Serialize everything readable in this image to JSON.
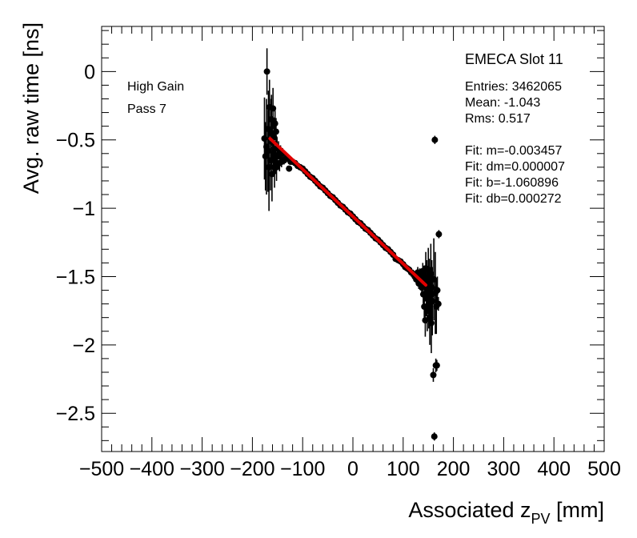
{
  "chart_data": {
    "type": "scatter",
    "title": "EMECA Slot 11",
    "xlabel": "Associated z",
    "xlabel_sub": "PV",
    "xlabel_unit": " [mm]",
    "ylabel": "Avg. raw time [ns]",
    "xlim": [
      -500,
      500
    ],
    "ylim": [
      -2.78,
      0.33
    ],
    "xticks": [
      -500,
      -400,
      -300,
      -200,
      -100,
      0,
      100,
      200,
      300,
      400,
      500
    ],
    "xtick_labels": [
      "−500",
      "−400",
      "−300",
      "−200",
      "−100",
      "0",
      "100",
      "200",
      "300",
      "400",
      "500"
    ],
    "yticks": [
      0,
      -0.5,
      -1,
      -1.5,
      -2,
      -2.5
    ],
    "ytick_labels": [
      "0",
      "−0.5",
      "−1",
      "−1.5",
      "−2",
      "−2.5"
    ],
    "annotations": {
      "gain": "High Gain",
      "pass": "Pass 7"
    },
    "stats": {
      "entries": "Entries: 3462065",
      "mean": "Mean: -1.043",
      "rms": "Rms: 0.517",
      "fit_m": "Fit: m=-0.003457",
      "fit_dm": "Fit: dm=0.000007",
      "fit_b": "Fit: b=-1.060896",
      "fit_db": "Fit: db=0.000272"
    },
    "fit": {
      "slope": -0.003457,
      "intercept": -1.060896,
      "x_range": [
        -165,
        145
      ],
      "color": "#e00000"
    },
    "series": [
      {
        "name": "data",
        "color": "#000000",
        "points": [
          [
            -176,
            -0.49,
            0.3
          ],
          [
            -174,
            -0.62,
            0.25
          ],
          [
            -172,
            -0.55,
            0.35
          ],
          [
            -171,
            0.0,
            0.17
          ],
          [
            -169,
            -0.58,
            0.3
          ],
          [
            -168,
            -0.42,
            0.28
          ],
          [
            -167,
            -0.7,
            0.32
          ],
          [
            -166,
            -0.26,
            0.2
          ],
          [
            -164,
            -0.65,
            0.22
          ],
          [
            -163,
            -0.45,
            0.25
          ],
          [
            -162,
            -0.35,
            0.18
          ],
          [
            -161,
            -0.75,
            0.2
          ],
          [
            -160,
            -0.52,
            0.15
          ],
          [
            -159,
            -0.27,
            0.15
          ],
          [
            -158,
            -0.6,
            0.16
          ],
          [
            -157,
            -0.48,
            0.14
          ],
          [
            -156,
            -0.7,
            0.15
          ],
          [
            -155,
            -0.38,
            0.12
          ],
          [
            -154,
            -0.63,
            0.12
          ],
          [
            -153,
            -0.44,
            0.1
          ],
          [
            -152,
            -0.7,
            0.1
          ],
          [
            -151,
            -0.56,
            0.08
          ],
          [
            -150,
            -0.62,
            0.08
          ],
          [
            -148,
            -0.57,
            0.06
          ],
          [
            -146,
            -0.67,
            0.06
          ],
          [
            -144,
            -0.59,
            0.05
          ],
          [
            -142,
            -0.66,
            0.04
          ],
          [
            -140,
            -0.6,
            0.04
          ],
          [
            -137,
            -0.65,
            0.03
          ],
          [
            -134,
            -0.64,
            0.03
          ],
          [
            -130,
            -0.63,
            0.02
          ],
          [
            -127,
            -0.71,
            0.02
          ],
          [
            -124,
            -0.66,
            0.02
          ],
          [
            -120,
            -0.66,
            0.01
          ],
          [
            -115,
            -0.67,
            0.01
          ],
          [
            -110,
            -0.69,
            0.01
          ],
          [
            -105,
            -0.7,
            0.01
          ],
          [
            -100,
            -0.71,
            0.01
          ],
          [
            -95,
            -0.73,
            0.01
          ],
          [
            -90,
            -0.75,
            0.01
          ],
          [
            -85,
            -0.77,
            0.01
          ],
          [
            -80,
            -0.78,
            0.01
          ],
          [
            -75,
            -0.8,
            0.01
          ],
          [
            -70,
            -0.82,
            0.01
          ],
          [
            -65,
            -0.84,
            0.01
          ],
          [
            -60,
            -0.85,
            0.01
          ],
          [
            -55,
            -0.87,
            0.01
          ],
          [
            -50,
            -0.89,
            0.01
          ],
          [
            -45,
            -0.91,
            0.01
          ],
          [
            -40,
            -0.92,
            0.01
          ],
          [
            -35,
            -0.94,
            0.01
          ],
          [
            -30,
            -0.96,
            0.01
          ],
          [
            -25,
            -0.98,
            0.01
          ],
          [
            -20,
            -0.99,
            0.01
          ],
          [
            -15,
            -1.01,
            0.01
          ],
          [
            -10,
            -1.03,
            0.01
          ],
          [
            -5,
            -1.04,
            0.01
          ],
          [
            0,
            -1.06,
            0.01
          ],
          [
            5,
            -1.08,
            0.01
          ],
          [
            10,
            -1.1,
            0.01
          ],
          [
            15,
            -1.11,
            0.01
          ],
          [
            20,
            -1.13,
            0.01
          ],
          [
            25,
            -1.15,
            0.01
          ],
          [
            30,
            -1.16,
            0.01
          ],
          [
            35,
            -1.18,
            0.01
          ],
          [
            40,
            -1.2,
            0.01
          ],
          [
            45,
            -1.22,
            0.01
          ],
          [
            50,
            -1.23,
            0.01
          ],
          [
            55,
            -1.25,
            0.01
          ],
          [
            60,
            -1.27,
            0.01
          ],
          [
            65,
            -1.29,
            0.01
          ],
          [
            70,
            -1.3,
            0.01
          ],
          [
            75,
            -1.32,
            0.01
          ],
          [
            80,
            -1.34,
            0.01
          ],
          [
            85,
            -1.37,
            0.01
          ],
          [
            90,
            -1.38,
            0.01
          ],
          [
            95,
            -1.39,
            0.02
          ],
          [
            100,
            -1.41,
            0.02
          ],
          [
            104,
            -1.43,
            0.02
          ],
          [
            108,
            -1.44,
            0.02
          ],
          [
            112,
            -1.45,
            0.02
          ],
          [
            116,
            -1.47,
            0.03
          ],
          [
            120,
            -1.48,
            0.03
          ],
          [
            123,
            -1.5,
            0.03
          ],
          [
            126,
            -1.52,
            0.03
          ],
          [
            129,
            -1.47,
            0.04
          ],
          [
            131,
            -1.55,
            0.04
          ],
          [
            133,
            -1.49,
            0.05
          ],
          [
            135,
            -1.53,
            0.05
          ],
          [
            137,
            -1.58,
            0.06
          ],
          [
            139,
            -1.46,
            0.06
          ],
          [
            140,
            -1.63,
            0.07
          ],
          [
            141,
            -1.5,
            0.08
          ],
          [
            142,
            -1.72,
            0.08
          ],
          [
            143,
            -1.57,
            0.1
          ],
          [
            144,
            -1.82,
            0.12
          ],
          [
            145,
            -1.44,
            0.12
          ],
          [
            146,
            -1.66,
            0.13
          ],
          [
            147,
            -1.52,
            0.14
          ],
          [
            148,
            -1.75,
            0.15
          ],
          [
            149,
            -1.6,
            0.15
          ],
          [
            150,
            -1.45,
            0.16
          ],
          [
            151,
            -1.7,
            0.18
          ],
          [
            152,
            -1.55,
            0.18
          ],
          [
            153,
            -1.8,
            0.2
          ],
          [
            154,
            -1.64,
            0.2
          ],
          [
            155,
            -1.48,
            0.22
          ],
          [
            156,
            -1.84,
            0.22
          ],
          [
            157,
            -1.58,
            0.2
          ],
          [
            158,
            -1.68,
            0.25
          ],
          [
            160,
            -2.22,
            0.05
          ],
          [
            161,
            -1.52,
            0.3
          ],
          [
            162,
            -2.67,
            0.03
          ],
          [
            163,
            -0.5,
            0.03
          ],
          [
            164,
            -1.62,
            0.3
          ],
          [
            165,
            -2.15,
            0.05
          ],
          [
            166,
            -1.72,
            0.2
          ],
          [
            167,
            -2.15,
            0.04
          ],
          [
            168,
            -1.6,
            0.1
          ],
          [
            170,
            -1.7,
            0.05
          ],
          [
            171,
            -1.19,
            0.03
          ]
        ]
      }
    ]
  }
}
